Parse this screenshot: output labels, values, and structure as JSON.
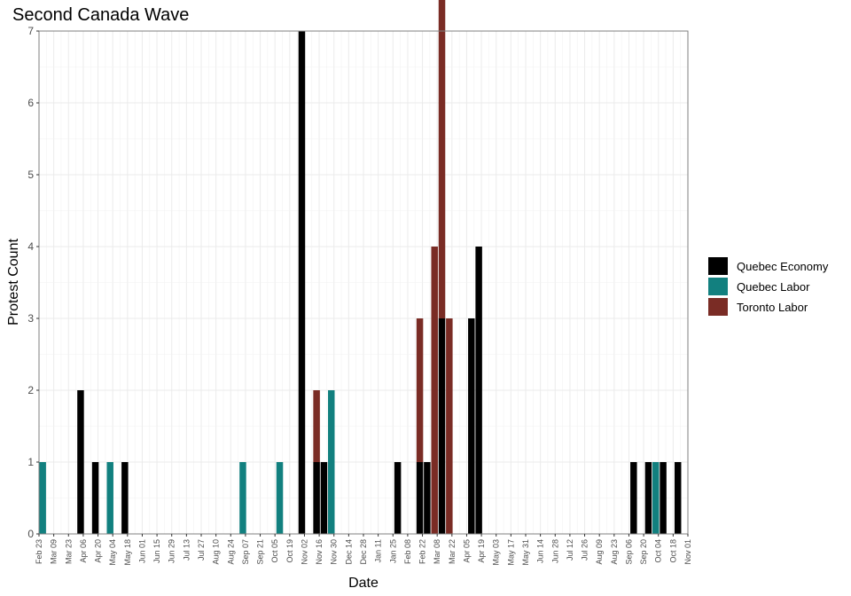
{
  "chart_data": {
    "type": "bar",
    "title": "Second Canada Wave",
    "xlabel": "Date",
    "ylabel": "Protest Count",
    "ylim": [
      0,
      7
    ],
    "yticks": [
      0,
      1,
      2,
      3,
      4,
      5,
      6,
      7
    ],
    "grid": true,
    "legend_position": "right",
    "x_tick_labels": [
      "Feb 23",
      "Mar 09",
      "Mar 23",
      "Apr 06",
      "Apr 20",
      "May 04",
      "May 18",
      "Jun 01",
      "Jun 15",
      "Jun 29",
      "Jul 13",
      "Jul 27",
      "Aug 10",
      "Aug 24",
      "Sep 07",
      "Sep 21",
      "Oct 05",
      "Oct 19",
      "Nov 02",
      "Nov 16",
      "Nov 30",
      "Dec 14",
      "Dec 28",
      "Jan 11",
      "Jan 25",
      "Feb 08",
      "Feb 22",
      "Mar 08",
      "Mar 22",
      "Apr 05",
      "Apr 19",
      "May 03",
      "May 17",
      "May 31",
      "Jun 14",
      "Jun 28",
      "Jul 12",
      "Jul 26",
      "Aug 09",
      "Aug 23",
      "Sep 06",
      "Sep 20",
      "Oct 04",
      "Oct 18",
      "Nov 01"
    ],
    "series": [
      {
        "name": "Quebec Economy",
        "color": "#000000",
        "points": [
          {
            "date": "Mar 30",
            "value": 2
          },
          {
            "date": "Apr 13",
            "value": 1
          },
          {
            "date": "May 11",
            "value": 1
          },
          {
            "date": "Oct 26",
            "value": 7
          },
          {
            "date": "Nov 09",
            "value": 1
          },
          {
            "date": "Nov 16",
            "value": 1
          },
          {
            "date": "Jan 25",
            "value": 1
          },
          {
            "date": "Feb 15",
            "value": 1
          },
          {
            "date": "Feb 22",
            "value": 1
          },
          {
            "date": "Mar 08",
            "value": 3
          },
          {
            "date": "Apr 05",
            "value": 3
          },
          {
            "date": "Apr 12",
            "value": 4
          },
          {
            "date": "Sep 06",
            "value": 1
          },
          {
            "date": "Sep 20",
            "value": 1
          },
          {
            "date": "Oct 04",
            "value": 1
          },
          {
            "date": "Oct 18",
            "value": 1
          }
        ]
      },
      {
        "name": "Quebec Labor",
        "color": "#12807f",
        "points": [
          {
            "date": "Feb 23",
            "value": 1
          },
          {
            "date": "Apr 27",
            "value": 1
          },
          {
            "date": "Aug 31",
            "value": 1
          },
          {
            "date": "Oct 05",
            "value": 1
          },
          {
            "date": "Nov 23",
            "value": 2
          },
          {
            "date": "Sep 27",
            "value": 1
          }
        ]
      },
      {
        "name": "Toronto Labor",
        "color": "#7a2c25",
        "points": [
          {
            "date": "Nov 09",
            "value": 1
          },
          {
            "date": "Feb 15",
            "value": 2
          },
          {
            "date": "Mar 01",
            "value": 4
          },
          {
            "date": "Mar 08",
            "value": 6
          },
          {
            "date": "Mar 15",
            "value": 3
          }
        ]
      }
    ]
  }
}
